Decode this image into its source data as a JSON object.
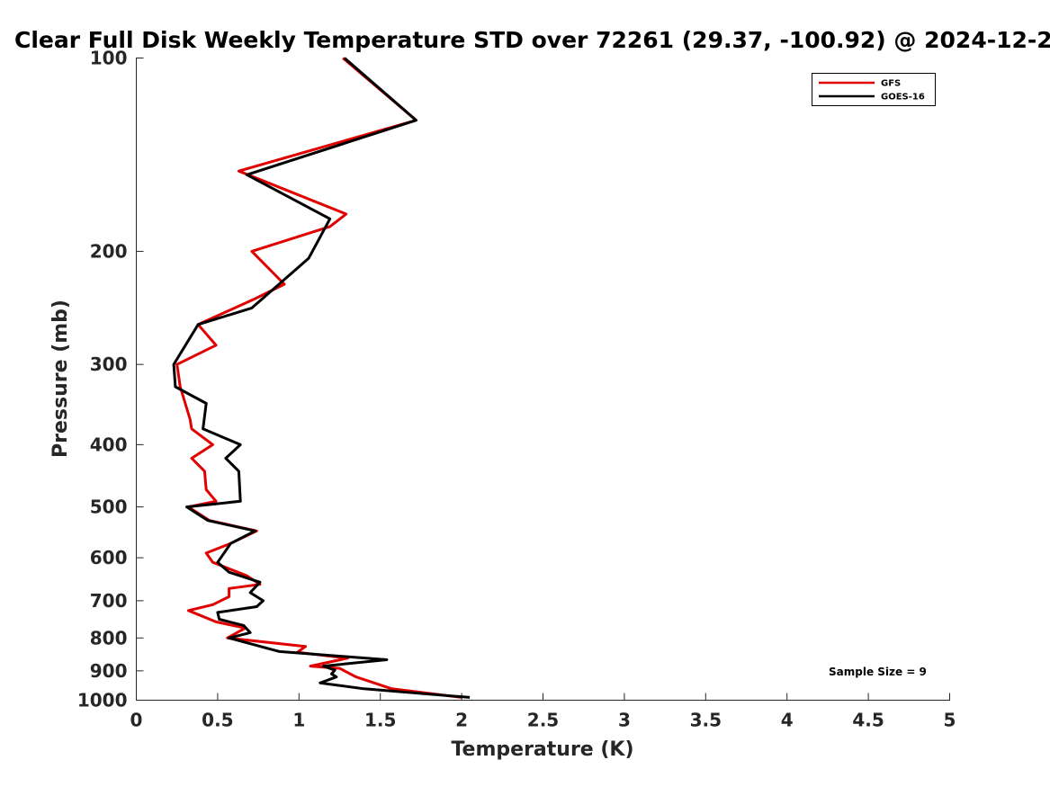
{
  "chart_data": {
    "type": "line",
    "title": "Clear Full Disk Weekly Temperature STD over 72261 (29.37, -100.92) @ 2024-12-2",
    "xlabel": "Temperature (K)",
    "ylabel": "Pressure (mb)",
    "xlim": [
      0,
      5
    ],
    "ylim": [
      100,
      1000
    ],
    "yscale": "log",
    "y_reversed": true,
    "x_ticks": [
      "0",
      "0.5",
      "1",
      "1.5",
      "2",
      "2.5",
      "3",
      "3.5",
      "4",
      "4.5",
      "5"
    ],
    "y_ticks": [
      "100",
      "200",
      "300",
      "400",
      "500",
      "600",
      "700",
      "800",
      "900",
      "1000"
    ],
    "grid": false,
    "legend_position": "top-right",
    "annotation": "Sample Size = 9",
    "series": [
      {
        "name": "GFS",
        "color": "#e00000",
        "points": [
          [
            1.27,
            100
          ],
          [
            1.72,
            125
          ],
          [
            0.63,
            150
          ],
          [
            1.29,
            175
          ],
          [
            1.19,
            183
          ],
          [
            0.71,
            200
          ],
          [
            0.91,
            225
          ],
          [
            0.73,
            237
          ],
          [
            0.38,
            260
          ],
          [
            0.49,
            280
          ],
          [
            0.25,
            300
          ],
          [
            0.27,
            325
          ],
          [
            0.33,
            365
          ],
          [
            0.34,
            378
          ],
          [
            0.47,
            400
          ],
          [
            0.34,
            420
          ],
          [
            0.42,
            440
          ],
          [
            0.43,
            470
          ],
          [
            0.49,
            490
          ],
          [
            0.32,
            500
          ],
          [
            0.45,
            525
          ],
          [
            0.74,
            545
          ],
          [
            0.58,
            570
          ],
          [
            0.43,
            590
          ],
          [
            0.47,
            610
          ],
          [
            0.68,
            640
          ],
          [
            0.76,
            660
          ],
          [
            0.57,
            670
          ],
          [
            0.57,
            690
          ],
          [
            0.47,
            710
          ],
          [
            0.32,
            725
          ],
          [
            0.49,
            755
          ],
          [
            0.67,
            772
          ],
          [
            0.56,
            800
          ],
          [
            1.04,
            825
          ],
          [
            0.99,
            842
          ],
          [
            1.3,
            860
          ],
          [
            1.07,
            885
          ],
          [
            1.25,
            892
          ],
          [
            1.35,
            920
          ],
          [
            1.57,
            960
          ],
          [
            2.0,
            990
          ]
        ]
      },
      {
        "name": "GOES-16",
        "color": "#000000",
        "points": [
          [
            1.28,
            100
          ],
          [
            1.72,
            125
          ],
          [
            0.68,
            152
          ],
          [
            1.19,
            178
          ],
          [
            1.14,
            188
          ],
          [
            1.06,
            205
          ],
          [
            0.71,
            245
          ],
          [
            0.38,
            260
          ],
          [
            0.23,
            300
          ],
          [
            0.24,
            325
          ],
          [
            0.43,
            345
          ],
          [
            0.41,
            378
          ],
          [
            0.64,
            400
          ],
          [
            0.55,
            420
          ],
          [
            0.63,
            440
          ],
          [
            0.64,
            490
          ],
          [
            0.31,
            500
          ],
          [
            0.44,
            525
          ],
          [
            0.73,
            545
          ],
          [
            0.58,
            570
          ],
          [
            0.5,
            610
          ],
          [
            0.57,
            632
          ],
          [
            0.76,
            655
          ],
          [
            0.7,
            680
          ],
          [
            0.78,
            700
          ],
          [
            0.74,
            715
          ],
          [
            0.5,
            730
          ],
          [
            0.51,
            748
          ],
          [
            0.66,
            765
          ],
          [
            0.7,
            785
          ],
          [
            0.57,
            800
          ],
          [
            0.88,
            840
          ],
          [
            1.54,
            865
          ],
          [
            1.15,
            885
          ],
          [
            1.22,
            898
          ],
          [
            1.2,
            910
          ],
          [
            1.23,
            920
          ],
          [
            1.13,
            940
          ],
          [
            1.4,
            960
          ],
          [
            2.05,
            990
          ]
        ]
      }
    ]
  }
}
